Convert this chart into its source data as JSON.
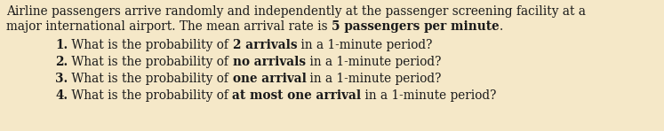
{
  "background_color": "#f5e8c8",
  "text_color": "#1a1a1a",
  "fig_width": 7.47,
  "fig_height": 1.48,
  "dpi": 100,
  "font_family": "DejaVu Serif",
  "font_size": 9.8,
  "para_line1": "Airline passengers arrive randomly and independently at the passenger screening facility at a",
  "para_line2_normal": "major international airport. The mean arrival rate is ",
  "para_line2_bold": "5 passengers per minute",
  "para_line2_end": ".",
  "questions": [
    {
      "num": "1.",
      "before": " What is the probability of ",
      "bold": "2 arrivals",
      "after": " in a 1-minute period?"
    },
    {
      "num": "2.",
      "before": " What is the probability of ",
      "bold": "no arrivals",
      "after": " in a 1-minute period?"
    },
    {
      "num": "3.",
      "before": " What is the probability of ",
      "bold": "one arrival",
      "after": " in a 1-minute period?"
    },
    {
      "num": "4.",
      "before": " What is the probability of ",
      "bold": "at most one arrival",
      "after": " in a 1-minute period?"
    }
  ]
}
